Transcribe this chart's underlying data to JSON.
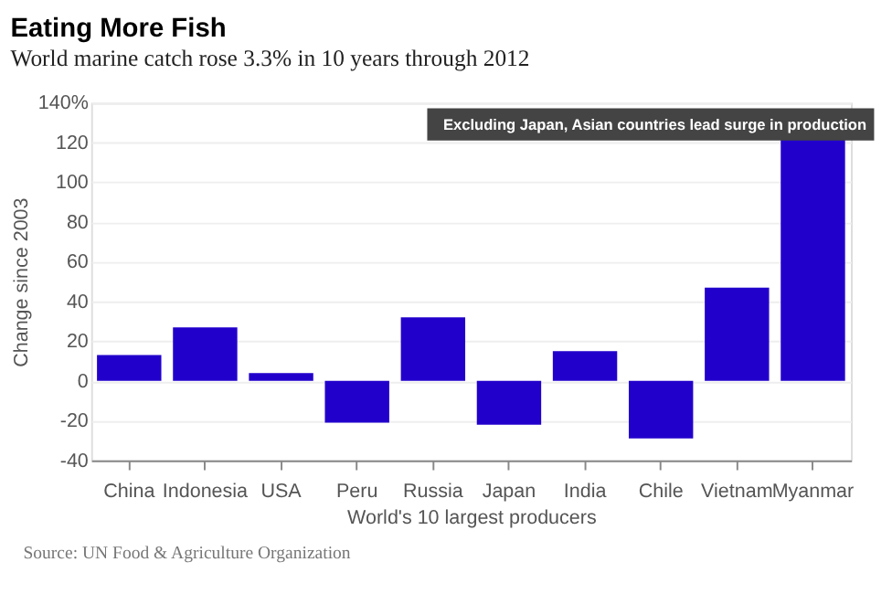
{
  "chart_data": {
    "type": "bar",
    "title": "Eating More Fish",
    "subtitle": "World marine catch rose 3.3% in 10 years through 2012",
    "categories": [
      "China",
      "Indonesia",
      "USA",
      "Peru",
      "Russia",
      "Japan",
      "India",
      "Chile",
      "Vietnam",
      "Myanmar"
    ],
    "values": [
      13,
      27,
      4,
      -21,
      32,
      -22,
      15,
      -29,
      47,
      122
    ],
    "color": "#2200cc",
    "xlabel": "World's 10 largest producers",
    "ylabel": "Change since 2003",
    "ylim": [
      -40,
      140
    ],
    "yticks": [
      -40,
      -20,
      0,
      20,
      40,
      60,
      80,
      100,
      120,
      {
        "value": 140,
        "label": "140%"
      }
    ],
    "grid": "y",
    "annotations": [
      {
        "text": "Excluding Japan, Asian countries lead surge in production",
        "x": "Myanmar",
        "y": 122
      },
      "Source: UN Food & Agriculture Organization"
    ]
  }
}
